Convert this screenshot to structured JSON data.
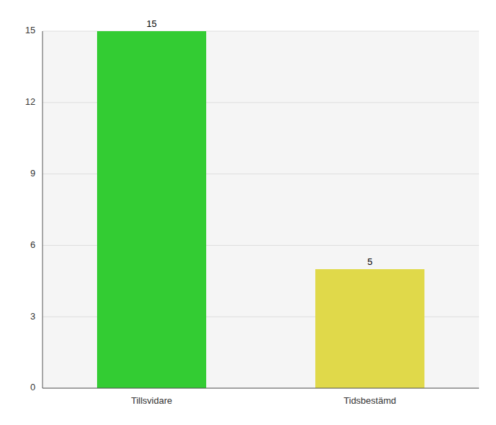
{
  "chart_data": {
    "type": "bar",
    "categories": [
      "Tillsvidare",
      "Tidsbestämd"
    ],
    "values": [
      15,
      5
    ],
    "colors": [
      "#33cc33",
      "#e0d94a"
    ],
    "ylim": [
      0,
      15
    ],
    "yticks": [
      0,
      3,
      6,
      9,
      12,
      15
    ],
    "grid": true,
    "data_labels": true
  }
}
